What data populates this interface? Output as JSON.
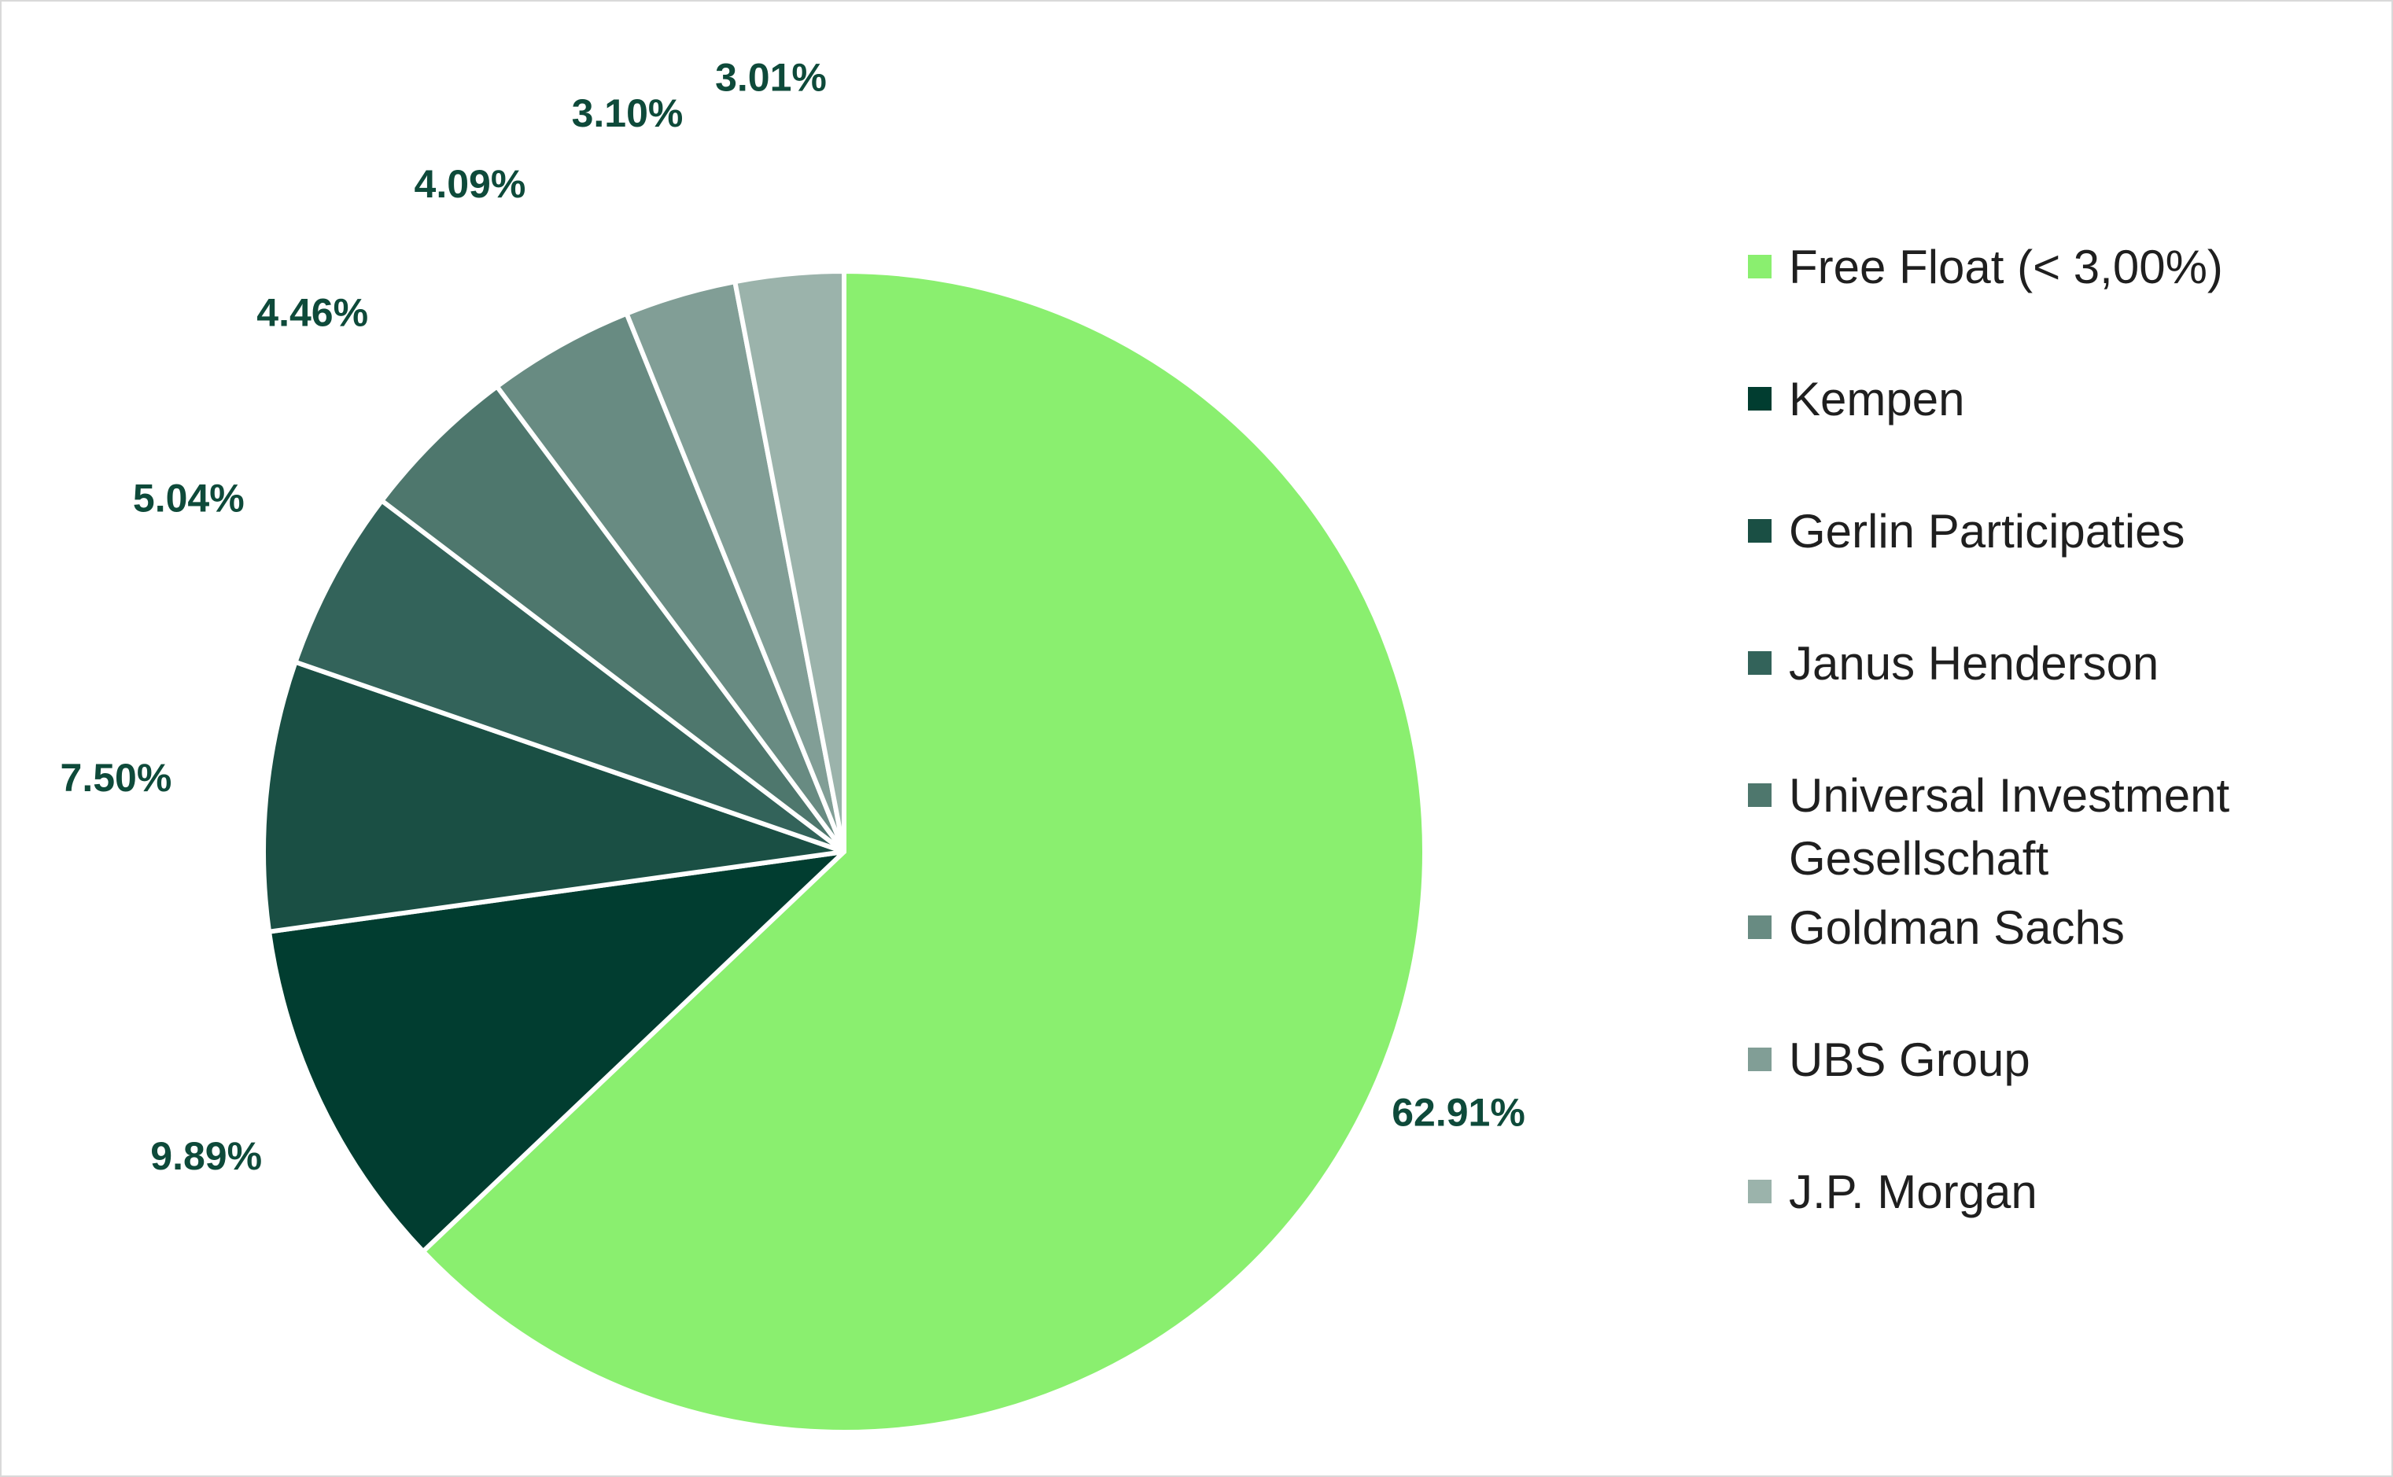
{
  "chart_data": {
    "type": "pie",
    "title": "",
    "legend_position": "right",
    "start_angle_deg": 0,
    "direction": "clockwise",
    "slices": [
      {
        "label": "Free Float (< 3,00%)",
        "value": 62.91,
        "display": "62.91%",
        "color": "#8aef6f"
      },
      {
        "label": "Kempen",
        "value": 9.89,
        "display": "9.89%",
        "color": "#013d30"
      },
      {
        "label": "Gerlin Participaties",
        "value": 7.5,
        "display": "7.50%",
        "color": "#1a4f44"
      },
      {
        "label": "Janus Henderson",
        "value": 5.04,
        "display": "5.04%",
        "color": "#33635a"
      },
      {
        "label": "Universal Investment Gesellschaft",
        "value": 4.46,
        "display": "4.46%",
        "color": "#4e776d"
      },
      {
        "label": "Goldman Sachs",
        "value": 4.09,
        "display": "4.09%",
        "color": "#688b82"
      },
      {
        "label": "UBS Group",
        "value": 3.1,
        "display": "3.10%",
        "color": "#819e96"
      },
      {
        "label": "J.P. Morgan",
        "value": 3.01,
        "display": "3.01%",
        "color": "#9bb3ab"
      }
    ]
  }
}
